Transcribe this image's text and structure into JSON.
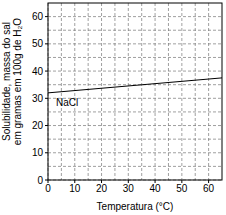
{
  "chart_data": {
    "type": "line",
    "xlabel": "Temperatura (°C)",
    "ylabel": [
      "Solubilidade, massa do sal",
      "em gramas em 100g de H₂O"
    ],
    "x": [
      0,
      65
    ],
    "series": [
      {
        "name": "NaCl",
        "color": "#000000",
        "values": [
          32,
          37.5
        ]
      }
    ],
    "xlim": [
      0,
      65
    ],
    "xticks": [
      0,
      10,
      20,
      30,
      40,
      50,
      60
    ],
    "ylim": [
      0,
      65
    ],
    "yticks": [
      0,
      10,
      20,
      30,
      40,
      50,
      60
    ],
    "grid": true
  }
}
